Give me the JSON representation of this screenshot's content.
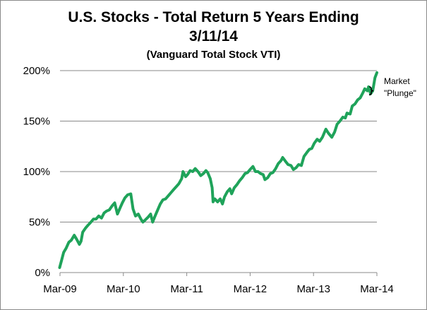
{
  "chart_data": {
    "type": "line",
    "title": "U.S. Stocks - Total Return 5 Years Ending 3/11/14",
    "subtitle": "(Vanguard Total Stock VTI)",
    "xlabel": "",
    "ylabel": "",
    "x_ticks": [
      "Mar-09",
      "Mar-10",
      "Mar-11",
      "Mar-12",
      "Mar-13",
      "Mar-14"
    ],
    "y_ticks": [
      "0%",
      "50%",
      "100%",
      "150%",
      "200%"
    ],
    "xlim": [
      "2009-03-11",
      "2014-03-11"
    ],
    "ylim": [
      0,
      200
    ],
    "grid": true,
    "legend": "none",
    "series": [
      {
        "color": "#1fa35a",
        "x": [
          "2009-03-09",
          "2009-03-20",
          "2009-04-01",
          "2009-04-15",
          "2009-05-01",
          "2009-05-15",
          "2009-06-01",
          "2009-06-15",
          "2009-07-01",
          "2009-07-10",
          "2009-07-20",
          "2009-08-05",
          "2009-08-20",
          "2009-09-05",
          "2009-09-20",
          "2009-10-05",
          "2009-10-20",
          "2009-11-05",
          "2009-11-20",
          "2009-12-05",
          "2009-12-20",
          "2010-01-05",
          "2010-01-20",
          "2010-02-05",
          "2010-02-20",
          "2010-03-05",
          "2010-03-20",
          "2010-04-05",
          "2010-04-23",
          "2010-05-06",
          "2010-05-20",
          "2010-06-05",
          "2010-06-20",
          "2010-07-02",
          "2010-07-15",
          "2010-08-01",
          "2010-08-15",
          "2010-08-27",
          "2010-09-10",
          "2010-09-25",
          "2010-10-10",
          "2010-10-25",
          "2010-11-10",
          "2010-11-25",
          "2010-12-10",
          "2010-12-25",
          "2011-01-10",
          "2011-01-25",
          "2011-02-10",
          "2011-02-18",
          "2011-03-05",
          "2011-03-16",
          "2011-03-31",
          "2011-04-15",
          "2011-04-29",
          "2011-05-15",
          "2011-05-31",
          "2011-06-15",
          "2011-06-30",
          "2011-07-10",
          "2011-07-25",
          "2011-08-05",
          "2011-08-10",
          "2011-08-20",
          "2011-09-05",
          "2011-09-20",
          "2011-10-03",
          "2011-10-15",
          "2011-10-31",
          "2011-11-15",
          "2011-11-25",
          "2011-12-10",
          "2011-12-25",
          "2012-01-10",
          "2012-01-25",
          "2012-02-10",
          "2012-02-25",
          "2012-03-10",
          "2012-03-27",
          "2012-04-10",
          "2012-04-25",
          "2012-05-10",
          "2012-05-25",
          "2012-06-04",
          "2012-06-20",
          "2012-07-05",
          "2012-07-20",
          "2012-08-05",
          "2012-08-20",
          "2012-09-05",
          "2012-09-14",
          "2012-10-01",
          "2012-10-15",
          "2012-11-01",
          "2012-11-15",
          "2012-12-01",
          "2012-12-15",
          "2012-12-31",
          "2013-01-15",
          "2013-02-01",
          "2013-02-15",
          "2013-03-01",
          "2013-03-15",
          "2013-04-01",
          "2013-04-15",
          "2013-05-01",
          "2013-05-21",
          "2013-06-05",
          "2013-06-24",
          "2013-07-10",
          "2013-07-25",
          "2013-08-10",
          "2013-08-27",
          "2013-09-10",
          "2013-09-20",
          "2013-10-08",
          "2013-10-20",
          "2013-11-05",
          "2013-11-20",
          "2013-12-05",
          "2013-12-20",
          "2013-12-31",
          "2014-01-15",
          "2014-01-22",
          "2014-02-03",
          "2014-02-15",
          "2014-02-28",
          "2014-03-11"
        ],
        "values": [
          5,
          12,
          20,
          24,
          30,
          32,
          37,
          33,
          28,
          31,
          40,
          44,
          47,
          50,
          53,
          53,
          56,
          54,
          59,
          61,
          62,
          66,
          69,
          58,
          64,
          69,
          74,
          77,
          78,
          63,
          56,
          58,
          53,
          50,
          52,
          55,
          58,
          50,
          56,
          62,
          68,
          72,
          73,
          76,
          79,
          82,
          85,
          88,
          93,
          100,
          95,
          97,
          101,
          100,
          103,
          100,
          96,
          98,
          101,
          99,
          93,
          84,
          70,
          73,
          70,
          73,
          68,
          75,
          80,
          83,
          78,
          84,
          87,
          91,
          94,
          98,
          99,
          102,
          105,
          100,
          100,
          98,
          97,
          92,
          94,
          98,
          99,
          103,
          108,
          111,
          114,
          110,
          107,
          106,
          102,
          104,
          107,
          106,
          115,
          119,
          122,
          123,
          128,
          132,
          130,
          134,
          142,
          138,
          134,
          139,
          147,
          150,
          154,
          153,
          158,
          157,
          165,
          167,
          171,
          173,
          178,
          182,
          180,
          184,
          177,
          180,
          193,
          198
        ]
      }
    ],
    "annotations": [
      {
        "line1": "Market",
        "line2": "\"Plunge\"",
        "from_value": 184,
        "to_value": 176
      }
    ]
  }
}
